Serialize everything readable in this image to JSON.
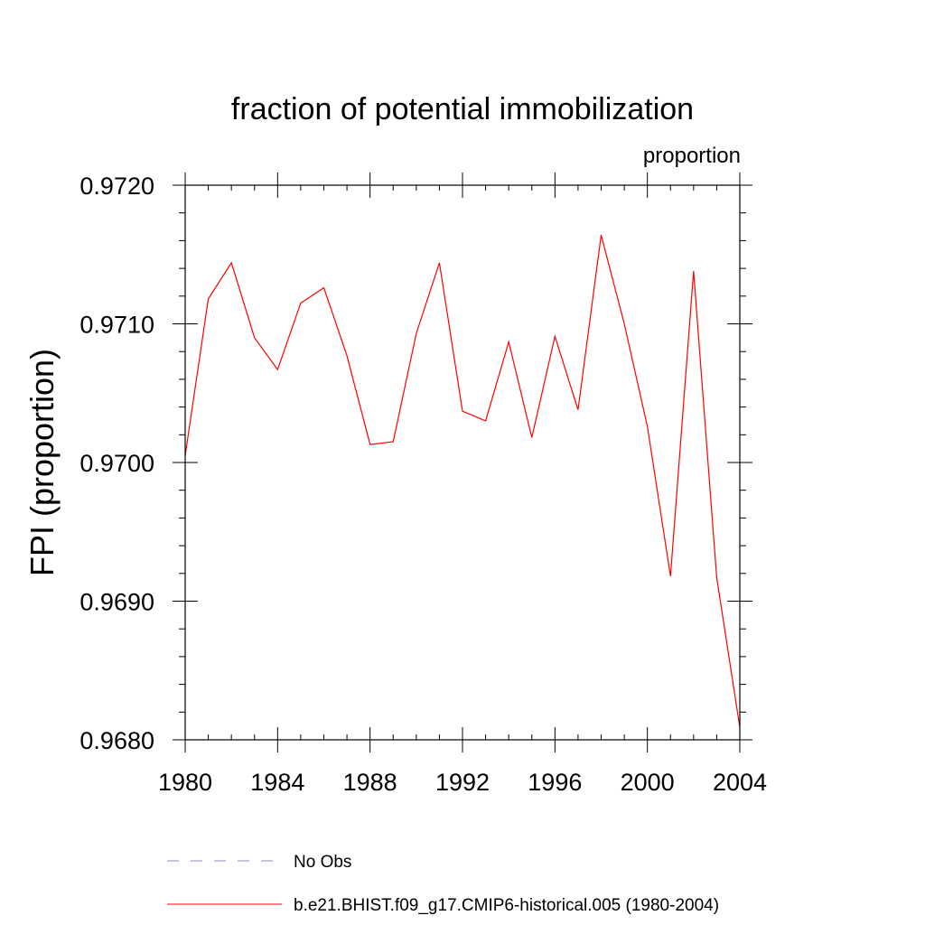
{
  "chart_data": {
    "type": "line",
    "title": "fraction of potential immobilization",
    "units_label": "proportion",
    "xlabel": "",
    "ylabel": "FPI  (proportion)",
    "xlim": [
      1980,
      2004
    ],
    "ylim": [
      0.968,
      0.972
    ],
    "x_ticks": [
      1980,
      1984,
      1988,
      1992,
      1996,
      2000,
      2004
    ],
    "x_tick_labels": [
      "1980",
      "1984",
      "1988",
      "1992",
      "1996",
      "2000",
      "2004"
    ],
    "y_ticks": [
      0.968,
      0.969,
      0.97,
      0.971,
      0.972
    ],
    "y_tick_labels": [
      "0.9680",
      "0.9690",
      "0.9700",
      "0.9710",
      "0.9720"
    ],
    "x_minor_step": 1,
    "y_minor_step": 0.0002,
    "grid": false,
    "legend_position": "bottom",
    "series": [
      {
        "name": "b.e21.BHIST.f09_g17.CMIP6-historical.005 (1980-2004)",
        "color": "#ff0000",
        "style": "solid",
        "x": [
          1980,
          1981,
          1982,
          1983,
          1984,
          1985,
          1986,
          1987,
          1988,
          1989,
          1990,
          1991,
          1992,
          1993,
          1994,
          1995,
          1996,
          1997,
          1998,
          1999,
          2000,
          2001,
          2002,
          2003,
          2004
        ],
        "values": [
          0.97005,
          0.97118,
          0.97144,
          0.9709,
          0.97067,
          0.97115,
          0.97126,
          0.97077,
          0.97013,
          0.97015,
          0.97093,
          0.97144,
          0.97037,
          0.9703,
          0.97087,
          0.97018,
          0.97091,
          0.97038,
          0.97164,
          0.971,
          0.97026,
          0.96918,
          0.97138,
          0.96917,
          0.96809
        ]
      }
    ],
    "legend": [
      {
        "label": "No Obs",
        "color": "#8888cc",
        "style": "dashed"
      },
      {
        "label": "b.e21.BHIST.f09_g17.CMIP6-historical.005 (1980-2004)",
        "color": "#ff0000",
        "style": "solid"
      }
    ]
  }
}
